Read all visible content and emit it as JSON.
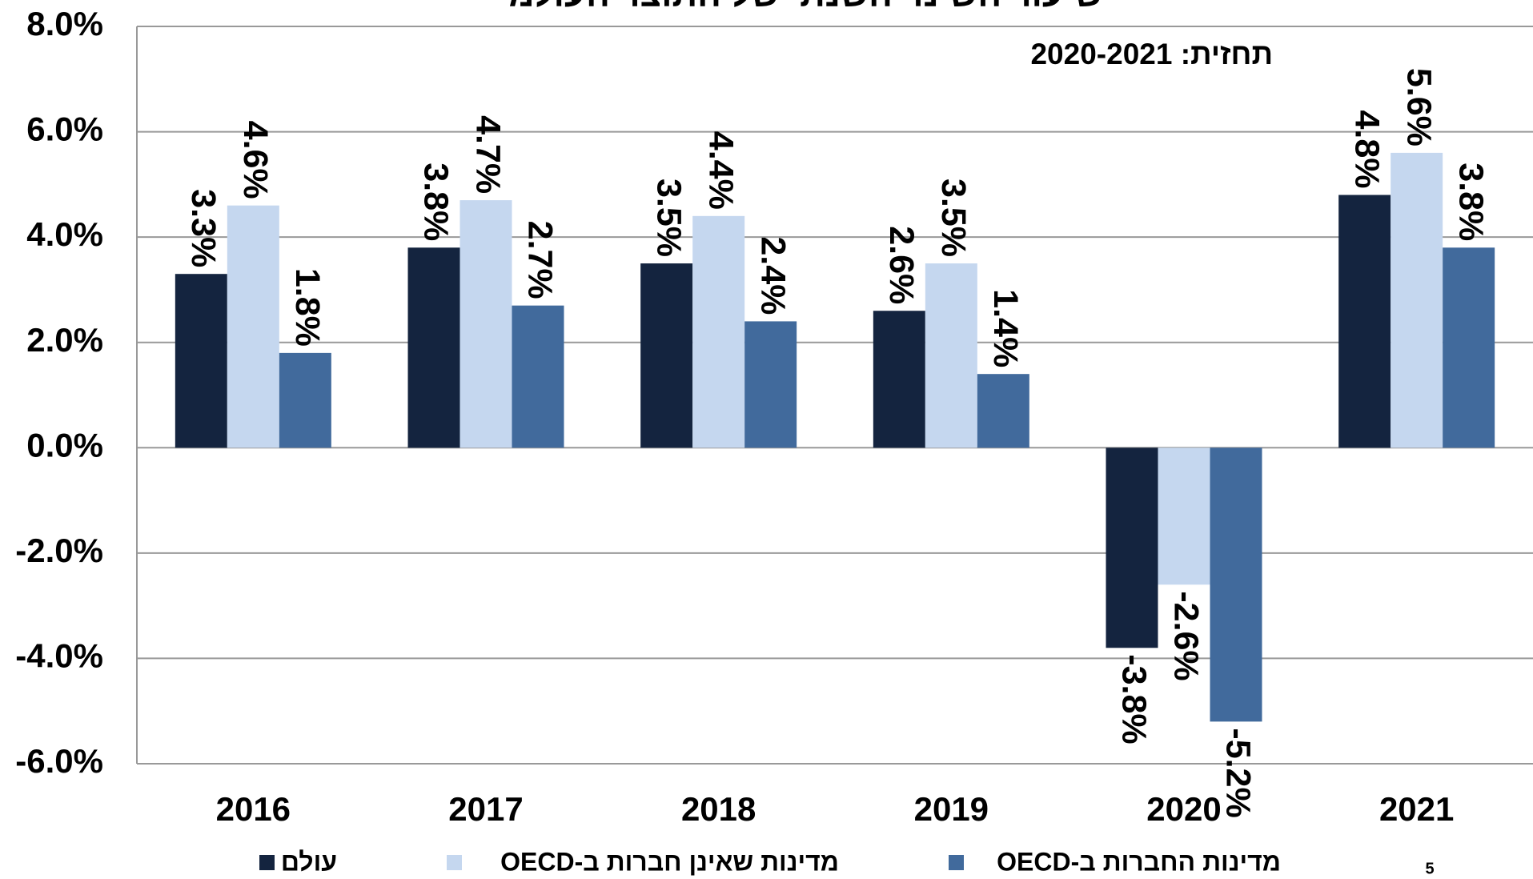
{
  "chart_data": {
    "type": "bar",
    "title": "שיעור השינוי השנתי של התוצר העולמי",
    "annotation": "תחזית: 2020-2021",
    "page_number": "5",
    "categories": [
      "2016",
      "2017",
      "2018",
      "2019",
      "2020",
      "2021"
    ],
    "series": [
      {
        "name": "עולם",
        "color": "#14243f",
        "values": [
          3.3,
          3.8,
          3.5,
          2.6,
          -3.8,
          4.8
        ],
        "value_labels": [
          "3.3%",
          "3.8%",
          "3.5%",
          "2.6%",
          "-3.8%",
          "4.8%"
        ]
      },
      {
        "name": "מדינות שאינן חברות ב-OECD",
        "color": "#c5d7ef",
        "values": [
          4.6,
          4.7,
          4.4,
          3.5,
          -2.6,
          5.6
        ],
        "value_labels": [
          "4.6%",
          "4.7%",
          "4.4%",
          "3.5%",
          "-2.6%",
          "5.6%"
        ]
      },
      {
        "name": "מדינות החברות ב-OECD",
        "color": "#416a9c",
        "values": [
          1.8,
          2.7,
          2.4,
          1.4,
          -5.2,
          3.8
        ],
        "value_labels": [
          "1.8%",
          "2.7%",
          "2.4%",
          "1.4%",
          "-5.2%",
          "3.8%"
        ]
      }
    ],
    "ylim": [
      -6,
      8
    ],
    "yticks": [
      {
        "value": -6,
        "label": "-6.0%"
      },
      {
        "value": -4,
        "label": "-4.0%"
      },
      {
        "value": -2,
        "label": "-2.0%"
      },
      {
        "value": 0,
        "label": "0.0%"
      },
      {
        "value": 2,
        "label": "2.0%"
      },
      {
        "value": 4,
        "label": "4.0%"
      },
      {
        "value": 6,
        "label": "6.0%"
      },
      {
        "value": 8,
        "label": "8.0%"
      }
    ],
    "grid": true
  }
}
